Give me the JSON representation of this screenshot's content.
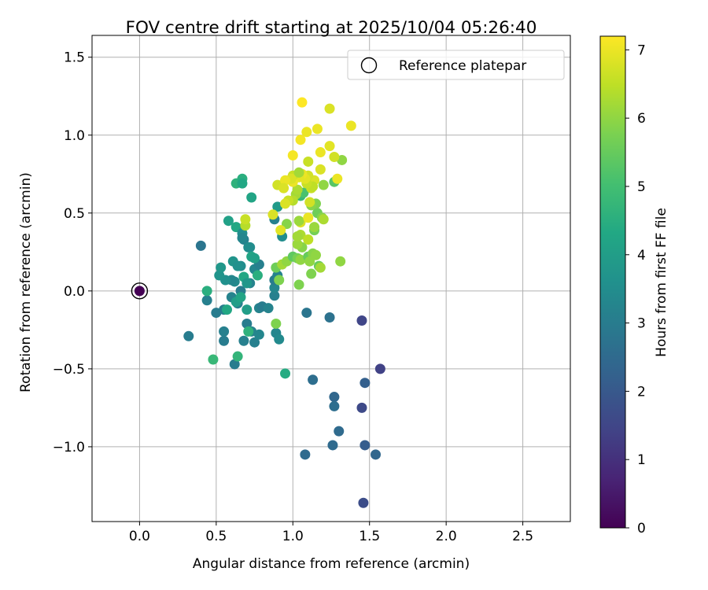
{
  "chart_data": {
    "type": "scatter",
    "title": "FOV centre drift starting at 2025/10/04 05:26:40",
    "xlabel": "Angular distance from reference (arcmin)",
    "ylabel": "Rotation from reference (arcmin)",
    "xlim": [
      -0.31,
      2.81
    ],
    "ylim": [
      -1.48,
      1.64
    ],
    "x_ticks": [
      0.0,
      0.5,
      1.0,
      1.5,
      2.0,
      2.5
    ],
    "x_tick_labels": [
      "0.0",
      "0.5",
      "1.0",
      "1.5",
      "2.0",
      "2.5"
    ],
    "y_ticks": [
      -1.0,
      -0.5,
      0.0,
      0.5,
      1.0,
      1.5
    ],
    "y_tick_labels": [
      "−1.0",
      "−0.5",
      "0.0",
      "0.5",
      "1.0",
      "1.5"
    ],
    "grid": true,
    "legend": {
      "position": "top-right",
      "entries": [
        "Reference platepar"
      ]
    },
    "colorbar": {
      "label": "Hours from first FF file",
      "colormap": "viridis",
      "range": [
        0,
        7.2
      ],
      "ticks": [
        0,
        1,
        2,
        3,
        4,
        5,
        6,
        7
      ],
      "tick_labels": [
        "0",
        "1",
        "2",
        "3",
        "4",
        "5",
        "6",
        "7"
      ]
    },
    "reference": {
      "x": 0.0,
      "y": 0.0,
      "c": 0.0
    },
    "points": [
      [
        1.45,
        -0.19,
        1.5
      ],
      [
        1.57,
        -0.5,
        1.4
      ],
      [
        1.45,
        -0.75,
        1.6
      ],
      [
        1.46,
        -1.36,
        1.7
      ],
      [
        1.47,
        -0.59,
        2.2
      ],
      [
        1.47,
        -0.99,
        2.1
      ],
      [
        1.54,
        -1.05,
        2.4
      ],
      [
        1.27,
        -0.68,
        2.4
      ],
      [
        1.3,
        -0.9,
        2.5
      ],
      [
        1.26,
        -0.99,
        2.5
      ],
      [
        1.27,
        -0.74,
        2.6
      ],
      [
        1.24,
        -0.17,
        2.7
      ],
      [
        1.08,
        -1.05,
        2.5
      ],
      [
        1.13,
        -0.57,
        2.6
      ],
      [
        1.09,
        -0.14,
        2.8
      ],
      [
        0.4,
        0.29,
        2.8
      ],
      [
        0.32,
        -0.29,
        3.0
      ],
      [
        0.44,
        -0.06,
        3.1
      ],
      [
        0.5,
        -0.14,
        3.0
      ],
      [
        0.55,
        -0.32,
        3.0
      ],
      [
        0.62,
        -0.47,
        3.0
      ],
      [
        0.55,
        -0.26,
        3.1
      ],
      [
        0.55,
        -0.12,
        3.0
      ],
      [
        0.6,
        -0.04,
        3.2
      ],
      [
        0.64,
        -0.08,
        3.1
      ],
      [
        0.66,
        0.0,
        3.0
      ],
      [
        0.68,
        -0.32,
        3.1
      ],
      [
        0.7,
        -0.21,
        3.0
      ],
      [
        0.73,
        -0.26,
        3.2
      ],
      [
        0.75,
        -0.33,
        3.1
      ],
      [
        0.78,
        -0.28,
        3.3
      ],
      [
        0.78,
        -0.11,
        3.2
      ],
      [
        0.8,
        -0.1,
        3.0
      ],
      [
        0.84,
        -0.11,
        3.2
      ],
      [
        0.88,
        -0.03,
        3.1
      ],
      [
        0.88,
        0.02,
        3.3
      ],
      [
        0.89,
        -0.27,
        3.3
      ],
      [
        0.91,
        -0.31,
        3.4
      ],
      [
        0.88,
        0.07,
        3.0
      ],
      [
        0.9,
        0.1,
        3.2
      ],
      [
        0.72,
        0.05,
        3.2
      ],
      [
        0.75,
        0.14,
        3.3
      ],
      [
        0.78,
        0.17,
        3.1
      ],
      [
        0.66,
        0.16,
        3.5
      ],
      [
        0.68,
        0.33,
        3.1
      ],
      [
        0.71,
        0.28,
        3.5
      ],
      [
        0.62,
        0.06,
        3.4
      ],
      [
        0.6,
        0.07,
        3.3
      ],
      [
        0.56,
        0.07,
        3.6
      ],
      [
        0.52,
        0.1,
        3.7
      ],
      [
        0.53,
        0.15,
        3.8
      ],
      [
        0.61,
        0.19,
        3.7
      ],
      [
        0.64,
        0.16,
        3.6
      ],
      [
        0.68,
        0.09,
        4.3
      ],
      [
        0.7,
        0.05,
        3.8
      ],
      [
        0.63,
        -0.07,
        4.0
      ],
      [
        0.66,
        -0.04,
        4.2
      ],
      [
        0.7,
        -0.12,
        4.0
      ],
      [
        0.44,
        0.0,
        4.5
      ],
      [
        0.58,
        0.45,
        4.1
      ],
      [
        0.63,
        0.41,
        4.3
      ],
      [
        0.67,
        0.37,
        3.5
      ],
      [
        0.67,
        0.34,
        3.3
      ],
      [
        0.72,
        0.28,
        3.5
      ],
      [
        0.73,
        0.22,
        4.2
      ],
      [
        0.75,
        0.21,
        4.1
      ],
      [
        0.77,
        0.1,
        4.5
      ],
      [
        0.63,
        0.69,
        4.6
      ],
      [
        0.67,
        0.72,
        4.5
      ],
      [
        0.67,
        0.69,
        4.3
      ],
      [
        0.73,
        0.6,
        4.2
      ],
      [
        0.9,
        0.54,
        3.9
      ],
      [
        0.88,
        0.46,
        3.1
      ],
      [
        0.93,
        0.35,
        3.5
      ],
      [
        0.71,
        -0.26,
        4.6
      ],
      [
        0.48,
        -0.44,
        4.8
      ],
      [
        0.64,
        -0.42,
        4.7
      ],
      [
        0.95,
        -0.53,
        4.4
      ],
      [
        0.57,
        -0.12,
        4.3
      ],
      [
        0.69,
        0.42,
        6.4
      ],
      [
        0.69,
        0.46,
        6.6
      ],
      [
        0.89,
        -0.21,
        5.8
      ],
      [
        0.91,
        0.07,
        5.8
      ],
      [
        0.89,
        0.15,
        5.6
      ],
      [
        0.93,
        0.17,
        6.2
      ],
      [
        0.96,
        0.19,
        6.0
      ],
      [
        0.96,
        0.43,
        5.9
      ],
      [
        0.9,
        0.68,
        6.7
      ],
      [
        0.92,
        0.39,
        6.9
      ],
      [
        0.87,
        0.49,
        6.8
      ],
      [
        1.0,
        0.22,
        5.4
      ],
      [
        1.03,
        0.21,
        5.7
      ],
      [
        1.04,
        0.04,
        5.8
      ],
      [
        1.05,
        0.2,
        6.0
      ],
      [
        1.06,
        0.28,
        5.9
      ],
      [
        1.03,
        0.3,
        6.1
      ],
      [
        1.05,
        0.36,
        6.3
      ],
      [
        1.03,
        0.35,
        6.2
      ],
      [
        1.1,
        0.22,
        5.5
      ],
      [
        1.13,
        0.24,
        5.9
      ],
      [
        1.15,
        0.23,
        6.0
      ],
      [
        1.17,
        0.16,
        5.5
      ],
      [
        1.18,
        0.15,
        6.2
      ],
      [
        1.12,
        0.11,
        5.8
      ],
      [
        1.11,
        0.19,
        6.0
      ],
      [
        1.14,
        0.39,
        5.7
      ],
      [
        1.14,
        0.41,
        6.1
      ],
      [
        1.16,
        0.5,
        5.6
      ],
      [
        1.19,
        0.47,
        5.9
      ],
      [
        1.2,
        0.46,
        6.3
      ],
      [
        1.1,
        0.33,
        6.5
      ],
      [
        1.15,
        0.56,
        5.8
      ],
      [
        1.12,
        0.55,
        5.9
      ],
      [
        1.05,
        0.61,
        4.8
      ],
      [
        1.07,
        0.63,
        5.1
      ],
      [
        1.02,
        0.62,
        6.2
      ],
      [
        1.03,
        0.65,
        6.3
      ],
      [
        1.0,
        0.58,
        6.4
      ],
      [
        0.97,
        0.58,
        6.6
      ],
      [
        0.95,
        0.56,
        6.8
      ],
      [
        1.31,
        0.19,
        6.0
      ],
      [
        1.32,
        0.84,
        6.0
      ],
      [
        1.27,
        0.7,
        5.3
      ],
      [
        1.29,
        0.72,
        7.0
      ],
      [
        1.27,
        0.86,
        6.7
      ],
      [
        1.2,
        0.68,
        6.0
      ],
      [
        1.18,
        0.78,
        6.8
      ],
      [
        1.14,
        0.71,
        6.8
      ],
      [
        1.12,
        0.66,
        6.6
      ],
      [
        1.13,
        0.67,
        6.5
      ],
      [
        1.09,
        0.69,
        6.6
      ],
      [
        1.1,
        0.74,
        6.7
      ],
      [
        1.08,
        0.72,
        6.9
      ],
      [
        1.06,
        0.75,
        7.0
      ],
      [
        1.04,
        0.73,
        6.9
      ],
      [
        1.0,
        0.7,
        7.0
      ],
      [
        1.0,
        0.74,
        6.6
      ],
      [
        0.99,
        0.72,
        6.8
      ],
      [
        0.95,
        0.71,
        7.0
      ],
      [
        0.94,
        0.66,
        6.8
      ],
      [
        1.1,
        0.83,
        6.6
      ],
      [
        1.04,
        0.76,
        6.2
      ],
      [
        1.0,
        0.87,
        7.1
      ],
      [
        1.05,
        0.97,
        7.1
      ],
      [
        1.09,
        1.02,
        7.0
      ],
      [
        1.16,
        1.04,
        7.0
      ],
      [
        1.18,
        0.89,
        7.0
      ],
      [
        1.24,
        0.93,
        6.9
      ],
      [
        1.24,
        1.17,
        6.8
      ],
      [
        1.38,
        1.06,
        7.0
      ],
      [
        1.06,
        1.21,
        7.2
      ],
      [
        1.05,
        0.44,
        6.8
      ],
      [
        1.04,
        0.45,
        6.1
      ],
      [
        1.1,
        0.47,
        7.0
      ],
      [
        1.11,
        0.57,
        6.7
      ]
    ]
  }
}
